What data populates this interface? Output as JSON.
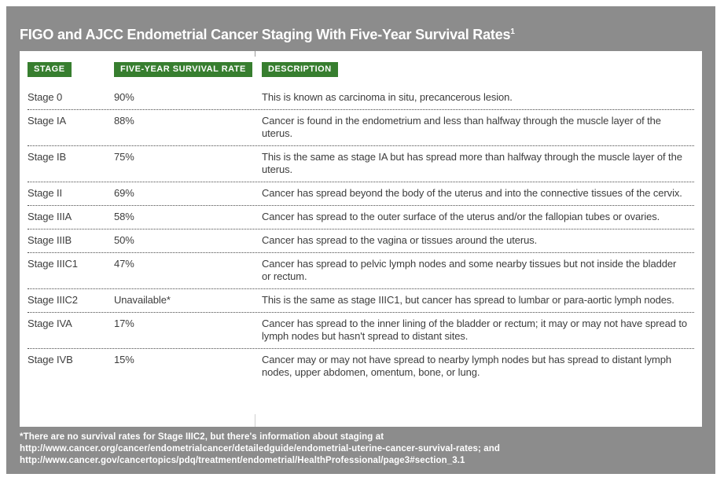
{
  "title": {
    "text": "FIGO and AJCC Endometrial Cancer Staging With Five-Year Survival Rates",
    "superscript": "1"
  },
  "table": {
    "headers": {
      "stage": "STAGE",
      "rate": "FIVE-YEAR SURVIVAL RATE",
      "description": "DESCRIPTION"
    },
    "rows": [
      {
        "stage": "Stage 0",
        "rate": "90%",
        "description": "This is known as carcinoma in situ, precancerous lesion."
      },
      {
        "stage": "Stage IA",
        "rate": "88%",
        "description": "Cancer is found in the endometrium and less than halfway through the muscle layer of the uterus."
      },
      {
        "stage": "Stage IB",
        "rate": "75%",
        "description": "This is the same as stage IA but has spread more than halfway through the muscle layer of the uterus."
      },
      {
        "stage": "Stage II",
        "rate": "69%",
        "description": "Cancer has spread beyond the body of the uterus and into the connective tissues of the cervix."
      },
      {
        "stage": "Stage IIIA",
        "rate": "58%",
        "description": "Cancer has spread to the outer surface of the uterus and/or the fallopian tubes or ovaries."
      },
      {
        "stage": "Stage IIIB",
        "rate": "50%",
        "description": "Cancer has spread to the vagina or tissues around the uterus."
      },
      {
        "stage": "Stage IIIC1",
        "rate": "47%",
        "description": "Cancer has spread to pelvic lymph nodes and some nearby tissues but not inside the bladder or rectum."
      },
      {
        "stage": "Stage IIIC2",
        "rate": "Unavailable*",
        "description": "This is the same as stage IIIC1, but cancer has spread to lumbar or para-aortic lymph nodes."
      },
      {
        "stage": "Stage IVA",
        "rate": "17%",
        "description": "Cancer has spread to the inner lining of the bladder or rectum; it may or may not have spread to lymph nodes but hasn't spread to distant sites."
      },
      {
        "stage": "Stage IVB",
        "rate": "15%",
        "description": "Cancer may or may not have spread to nearby lymph nodes but has spread to distant lymph nodes, upper abdomen, omentum, bone, or lung."
      }
    ]
  },
  "footnote": "*There are no survival rates for Stage IIIC2, but there's information about staging at http://www.cancer.org/cancer/endometrialcancer/detailedguide/endometrial-uterine-cancer-survival-rates; and http://www.cancer.gov/cancertopics/pdq/treatment/endometrial/HealthProfessional/page3#section_3.1",
  "colors": {
    "background_gray": "#8c8c8c",
    "header_green": "#377e2f",
    "text_dark": "#3d3d3d",
    "text_white": "#ffffff"
  }
}
